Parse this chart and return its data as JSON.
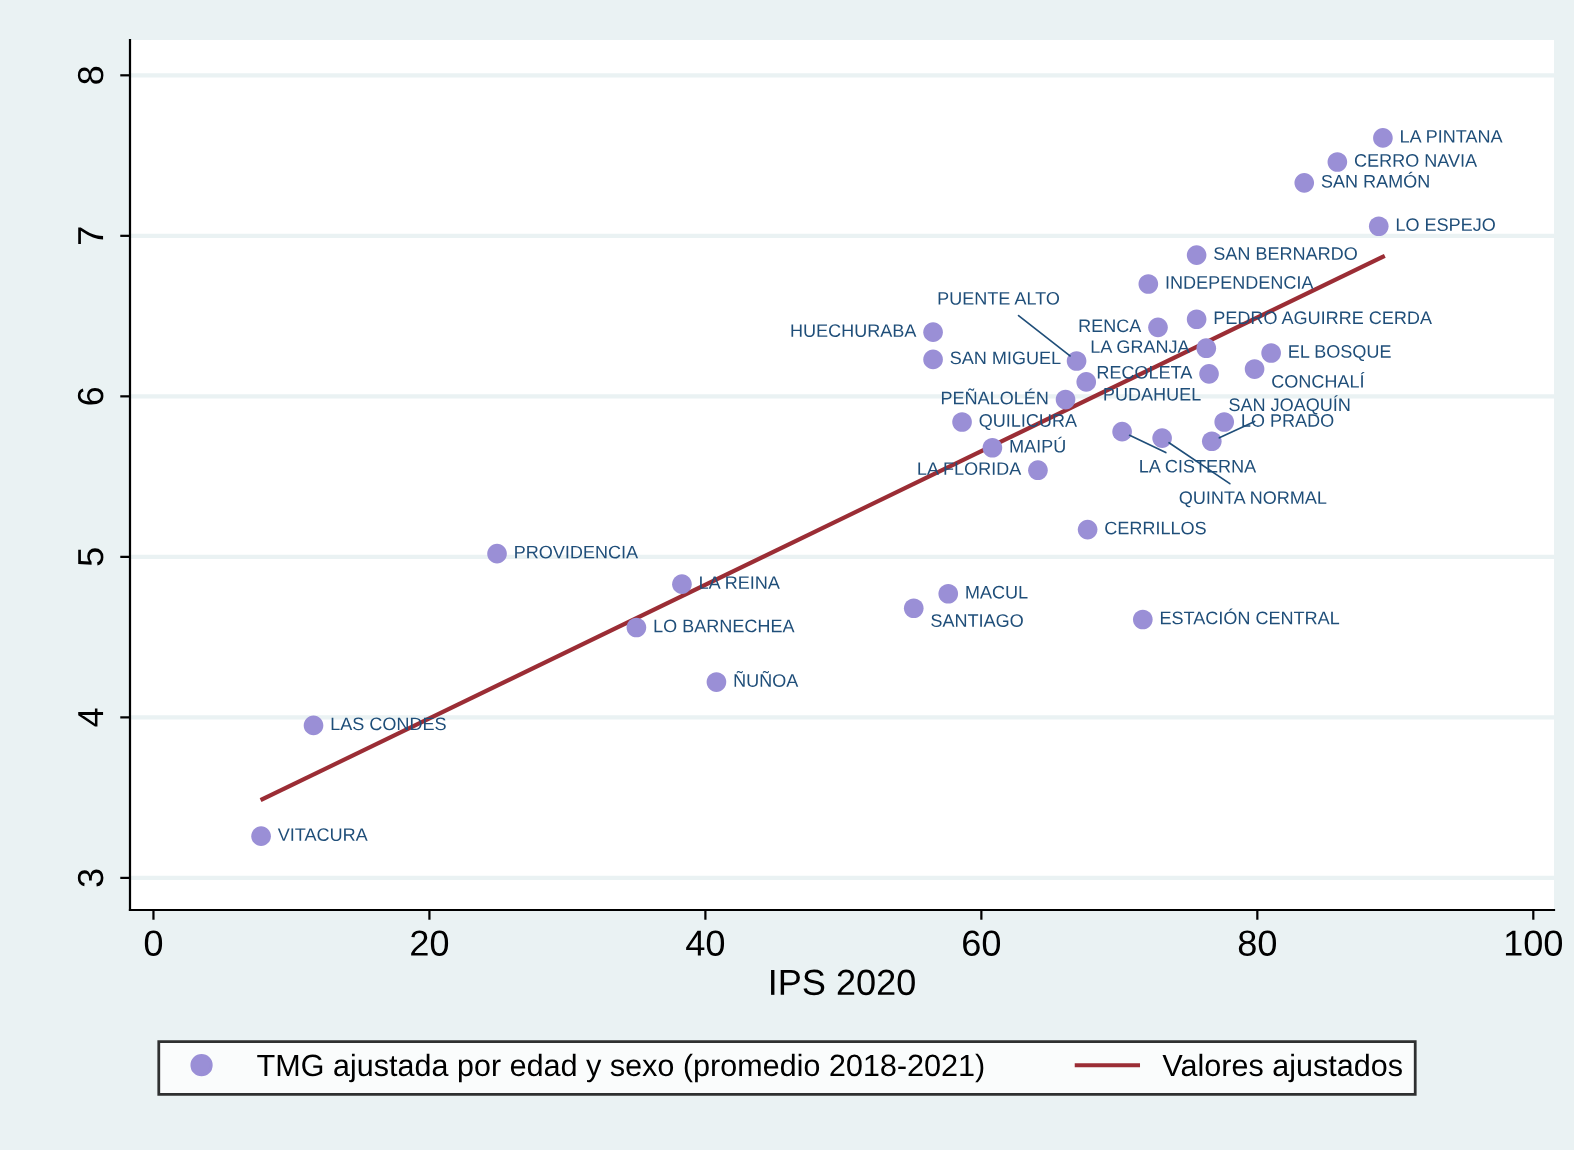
{
  "chart_data": {
    "type": "scatter",
    "xlabel": "IPS 2020",
    "xlim": [
      -1.7,
      101.5
    ],
    "ylim": [
      2.8,
      8.22
    ],
    "xticks": [
      0,
      20,
      40,
      60,
      80,
      100
    ],
    "yticks": [
      3,
      4,
      5,
      6,
      7,
      8
    ],
    "grid": "y",
    "legend": "bottom",
    "series": [
      {
        "name": "TMG ajustada por edad y sexo (promedio 2018-2021)",
        "marker": "circle",
        "color": "#9a8fd6",
        "x": [
          89.1,
          85.8,
          83.4,
          88.8,
          75.6,
          72.1,
          75.6,
          72.8,
          56.5,
          76.3,
          81.0,
          56.5,
          66.9,
          79.8,
          76.5,
          67.6,
          66.1,
          58.6,
          77.6,
          70.2,
          73.1,
          76.7,
          60.8,
          64.1,
          67.7,
          24.9,
          38.3,
          57.6,
          55.1,
          71.7,
          35.0,
          40.8,
          11.6,
          7.8
        ],
        "values": [
          7.61,
          7.46,
          7.33,
          7.06,
          6.88,
          6.7,
          6.48,
          6.43,
          6.4,
          6.3,
          6.27,
          6.23,
          6.22,
          6.17,
          6.14,
          6.09,
          5.98,
          5.84,
          5.84,
          5.78,
          5.74,
          5.72,
          5.68,
          5.54,
          5.17,
          5.02,
          4.83,
          4.77,
          4.68,
          4.61,
          4.56,
          4.22,
          3.95,
          3.26
        ]
      },
      {
        "name": "Valores ajustados",
        "type": "line",
        "color": "#9b2d35",
        "x": [
          7.9,
          89.1
        ],
        "values": [
          3.49,
          6.87
        ]
      }
    ],
    "annotations": [
      {
        "text": "LA PINTANA",
        "x": 89.1,
        "y": 7.61
      },
      {
        "text": "CERRO NAVIA",
        "x": 85.8,
        "y": 7.46
      },
      {
        "text": "SAN RAMÓN",
        "x": 83.4,
        "y": 7.33
      },
      {
        "text": "LO ESPEJO",
        "x": 88.8,
        "y": 7.06
      },
      {
        "text": "SAN BERNARDO",
        "x": 75.6,
        "y": 6.88
      },
      {
        "text": "INDEPENDENCIA",
        "x": 72.1,
        "y": 6.7
      },
      {
        "text": "PEDRO AGUIRRE CERDA",
        "x": 75.6,
        "y": 6.48
      },
      {
        "text": "RENCA",
        "x": 72.8,
        "y": 6.43
      },
      {
        "text": "HUECHURABA",
        "x": 56.5,
        "y": 6.4
      },
      {
        "text": "LA GRANJA",
        "x": 76.3,
        "y": 6.3
      },
      {
        "text": "EL BOSQUE",
        "x": 81.0,
        "y": 6.27
      },
      {
        "text": "SAN MIGUEL",
        "x": 56.5,
        "y": 6.23
      },
      {
        "text": "PUENTE ALTO",
        "x": 66.9,
        "y": 6.22
      },
      {
        "text": "CONCHALÍ",
        "x": 79.8,
        "y": 6.17
      },
      {
        "text": "RECOLETA",
        "x": 76.5,
        "y": 6.14
      },
      {
        "text": "PUDAHUEL",
        "x": 67.6,
        "y": 6.09
      },
      {
        "text": "PEÑALOLÉN",
        "x": 66.1,
        "y": 5.98
      },
      {
        "text": "QUILICURA",
        "x": 58.6,
        "y": 5.84
      },
      {
        "text": "LO PRADO",
        "x": 77.6,
        "y": 5.84
      },
      {
        "text": "LA CISTERNA",
        "x": 70.2,
        "y": 5.78
      },
      {
        "text": "QUINTA NORMAL",
        "x": 73.1,
        "y": 5.74
      },
      {
        "text": "SAN JOAQUÍN",
        "x": 76.7,
        "y": 5.72
      },
      {
        "text": "MAIPÚ",
        "x": 60.8,
        "y": 5.68
      },
      {
        "text": "LA FLORIDA",
        "x": 64.1,
        "y": 5.54
      },
      {
        "text": "CERRILLOS",
        "x": 67.7,
        "y": 5.17
      },
      {
        "text": "PROVIDENCIA",
        "x": 24.9,
        "y": 5.02
      },
      {
        "text": "LA REINA",
        "x": 38.3,
        "y": 4.83
      },
      {
        "text": "MACUL",
        "x": 57.6,
        "y": 4.77
      },
      {
        "text": "SANTIAGO",
        "x": 55.1,
        "y": 4.68
      },
      {
        "text": "ESTACIÓN CENTRAL",
        "x": 71.7,
        "y": 4.61
      },
      {
        "text": "LO BARNECHEA",
        "x": 35.0,
        "y": 4.56
      },
      {
        "text": "ÑUÑOA",
        "x": 40.8,
        "y": 4.22
      },
      {
        "text": "LAS CONDES",
        "x": 11.6,
        "y": 3.95
      },
      {
        "text": "VITACURA",
        "x": 7.8,
        "y": 3.26
      }
    ]
  }
}
